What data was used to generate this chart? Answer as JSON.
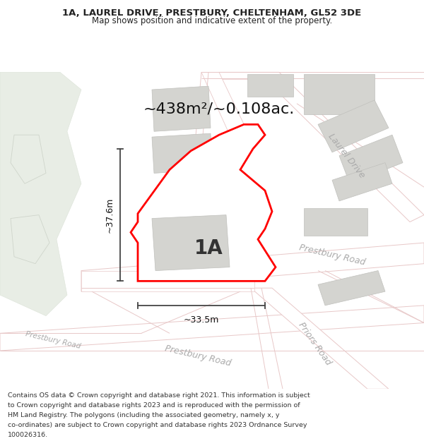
{
  "title_line1": "1A, LAUREL DRIVE, PRESTBURY, CHELTENHAM, GL52 3DE",
  "title_line2": "Map shows position and indicative extent of the property.",
  "area_text": "~438m²/~0.108ac.",
  "label_1a": "1A",
  "dim_height": "~37.6m",
  "dim_width": "~33.5m",
  "footer_lines": [
    "Contains OS data © Crown copyright and database right 2021. This information is subject",
    "to Crown copyright and database rights 2023 and is reproduced with the permission of",
    "HM Land Registry. The polygons (including the associated geometry, namely x, y",
    "co-ordinates) are subject to Crown copyright and database rights 2023 Ordnance Survey",
    "100026316."
  ],
  "map_bg": "#f7f7f5",
  "road_fill": "#e8e8e4",
  "road_line": "#e8c8c8",
  "plot_fill": "#ffffff",
  "plot_border": "#ff0000",
  "building_fill": "#d4d4d0",
  "building_edge": "#c0c0bc",
  "green_fill": "#e8ede5",
  "green_edge": "#dce3d8",
  "road_label_color": "#aaaaaa",
  "dim_color": "#444444",
  "title_color": "#222222",
  "footer_color": "#333333",
  "title_fontsize": 9.5,
  "subtitle_fontsize": 8.5,
  "area_fontsize": 16,
  "label_fontsize": 20,
  "dim_fontsize": 9,
  "road_label_fontsize": 9,
  "footer_fontsize": 6.8
}
